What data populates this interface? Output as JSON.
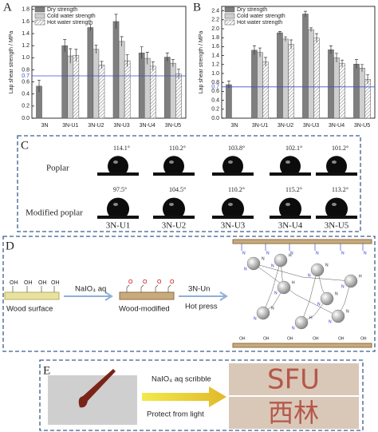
{
  "chart_data": [
    {
      "type": "bar",
      "label": "A",
      "y_label": "Lap shear strength / MPa",
      "categories": [
        "3N",
        "3N-U1",
        "3N-U2",
        "3N-U3",
        "3N-U4",
        "3N-U5"
      ],
      "series": [
        {
          "name": "Dry strength",
          "color": "#7f7f7f",
          "values": [
            0.53,
            1.2,
            1.5,
            1.6,
            1.08,
            1.01
          ],
          "errors": [
            0.1,
            0.1,
            0.05,
            0.12,
            0.1,
            0.07
          ]
        },
        {
          "name": "Cold water strength",
          "color": "#cfcfcf",
          "values": [
            null,
            1.03,
            1.14,
            1.27,
            0.99,
            0.91
          ],
          "errors": [
            null,
            0.12,
            0.07,
            0.08,
            0.1,
            0.06
          ]
        },
        {
          "name": "Hot water strength",
          "color": "#ffffff",
          "hatch": true,
          "values": [
            null,
            1.04,
            0.88,
            0.95,
            0.86,
            0.73
          ],
          "errors": [
            null,
            0.1,
            0.06,
            0.1,
            0.07,
            0.08
          ]
        }
      ],
      "ylim": [
        0,
        1.85
      ],
      "yticks": [
        {
          "value": 0,
          "label": "0.0"
        },
        0.2,
        0.4,
        0.6,
        0.8,
        {
          "value": 1,
          "label": "1.0"
        },
        1.2,
        1.4,
        1.6,
        1.8
      ],
      "hline": 0.7
    },
    {
      "type": "bar",
      "label": "B",
      "y_label": "Lap shear strength / MPa",
      "categories": [
        "3N",
        "3N-U1",
        "3N-U2",
        "3N-U3",
        "3N-U4",
        "3N-U5"
      ],
      "series": [
        {
          "name": "Dry strength",
          "color": "#7f7f7f",
          "values": [
            0.75,
            1.52,
            1.91,
            2.33,
            1.53,
            1.21
          ],
          "errors": [
            0.08,
            0.1,
            0.03,
            0.06,
            0.09,
            0.1
          ]
        },
        {
          "name": "Cold water strength",
          "color": "#cfcfcf",
          "values": [
            null,
            1.47,
            1.77,
            1.98,
            1.35,
            1.12
          ],
          "errors": [
            null,
            0.1,
            0.05,
            0.04,
            0.1,
            0.08
          ]
        },
        {
          "name": "Hot water strength",
          "color": "#ffffff",
          "hatch": true,
          "values": [
            null,
            1.26,
            1.65,
            1.79,
            1.22,
            0.87
          ],
          "errors": [
            null,
            0.1,
            0.1,
            0.1,
            0.08,
            0.1
          ]
        }
      ],
      "ylim": [
        0,
        2.5
      ],
      "yticks": [
        {
          "value": 0,
          "label": "0.0"
        },
        0.2,
        0.4,
        0.6,
        0.8,
        {
          "value": 1,
          "label": "1.0"
        },
        1.2,
        1.4,
        1.6,
        1.8,
        {
          "value": 2,
          "label": "2.0"
        },
        2.2,
        2.4
      ],
      "hline": 0.7
    }
  ],
  "panel_c": {
    "label": "C",
    "rows": [
      {
        "name": "Poplar",
        "angles": [
          "114.1°",
          "110.2°",
          "103.8°",
          "102.1°",
          "101.2°"
        ]
      },
      {
        "name": "Modified poplar",
        "angles": [
          "97.5°",
          "104.5°",
          "110.2°",
          "115.2°",
          "113.2°"
        ]
      }
    ],
    "samples": [
      "3N-U1",
      "3N-U2",
      "3N-U3",
      "3N-U4",
      "3N-U5"
    ]
  },
  "panel_d": {
    "label": "D",
    "hydroxyl": "OH",
    "reagent": "NaIO₄ aq",
    "wood": "Wood surface",
    "wood_modified": "Wood-modified",
    "adhesive": "3N-Un",
    "process": "Hot press",
    "atoms": [
      "N",
      "H",
      "O"
    ]
  },
  "panel_e": {
    "label": "E",
    "step1": "NaIO₄ aq scribble",
    "step2": "Protect from light",
    "text1": "SFU",
    "text2": "西林"
  }
}
